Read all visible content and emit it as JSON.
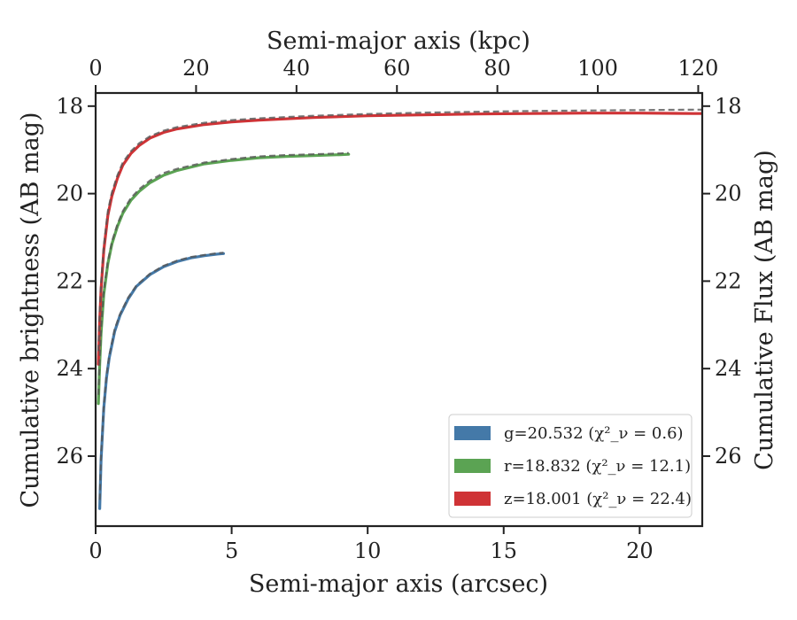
{
  "chart_data": {
    "type": "line",
    "xlabel": "Semi-major axis (arcsec)",
    "xlabel_top": "Semi-major axis (kpc)",
    "ylabel": "Cumulative brightness (AB mag)",
    "ylabel_right": "Cumulative Flux (AB mag)",
    "xlim": [
      0,
      22.3
    ],
    "ylim": [
      27.6,
      17.7
    ],
    "y_inverted": true,
    "xlim_top": [
      0,
      120.8
    ],
    "x_ticks": [
      0,
      5,
      10,
      15,
      20
    ],
    "x_ticks_top": [
      0,
      20,
      40,
      60,
      80,
      100,
      120
    ],
    "y_ticks": [
      18,
      20,
      22,
      24,
      26
    ],
    "grid": false,
    "legend_position": "lower-right",
    "series": [
      {
        "name": "g=20.532",
        "chi_label": "(χ²_ν = 0.6)",
        "color": "#4479a8",
        "x": [
          0.15,
          0.2,
          0.3,
          0.4,
          0.5,
          0.7,
          0.9,
          1.2,
          1.5,
          2.0,
          2.5,
          3.0,
          3.5,
          4.0,
          4.5,
          4.7
        ],
        "y": [
          27.2,
          26.1,
          24.9,
          24.2,
          23.75,
          23.15,
          22.78,
          22.4,
          22.12,
          21.85,
          21.67,
          21.55,
          21.47,
          21.42,
          21.38,
          21.37
        ]
      },
      {
        "name": "r=18.832",
        "chi_label": "(χ²_ν = 12.1)",
        "color": "#5ba353",
        "x": [
          0.1,
          0.15,
          0.2,
          0.3,
          0.45,
          0.6,
          0.8,
          1.0,
          1.3,
          1.6,
          2.0,
          2.5,
          3.0,
          4.0,
          5.0,
          6.0,
          7.0,
          8.0,
          9.0,
          9.3
        ],
        "y": [
          24.8,
          23.9,
          23.2,
          22.3,
          21.6,
          21.15,
          20.75,
          20.45,
          20.15,
          19.95,
          19.75,
          19.58,
          19.47,
          19.32,
          19.24,
          19.18,
          19.15,
          19.13,
          19.11,
          19.1
        ]
      },
      {
        "name": "z=18.001",
        "chi_label": "(χ²_ν = 22.4)",
        "color": "#cf3336",
        "x": [
          0.1,
          0.15,
          0.2,
          0.3,
          0.45,
          0.6,
          0.8,
          1.0,
          1.3,
          1.6,
          2.0,
          2.5,
          3.0,
          4.0,
          5.0,
          6.0,
          8.0,
          10.0,
          12.0,
          14.0,
          16.0,
          18.0,
          20.0,
          22.0,
          22.3
        ],
        "y": [
          23.9,
          22.9,
          22.2,
          21.3,
          20.5,
          20.05,
          19.65,
          19.35,
          19.08,
          18.9,
          18.73,
          18.6,
          18.52,
          18.42,
          18.36,
          18.32,
          18.26,
          18.22,
          18.2,
          18.18,
          18.17,
          18.16,
          18.16,
          18.17,
          18.17
        ]
      }
    ],
    "models": [
      {
        "color": "#555555",
        "dash": true,
        "x": [
          0.15,
          0.2,
          0.3,
          0.4,
          0.5,
          0.7,
          0.9,
          1.2,
          1.5,
          2.0,
          2.5,
          3.0,
          3.5,
          4.0,
          4.5,
          4.7
        ],
        "y": [
          27.0,
          26.0,
          24.85,
          24.15,
          23.7,
          23.1,
          22.75,
          22.37,
          22.1,
          21.83,
          21.65,
          21.53,
          21.45,
          21.4,
          21.36,
          21.35
        ]
      },
      {
        "color": "#555555",
        "dash": true,
        "x": [
          0.1,
          0.15,
          0.2,
          0.3,
          0.45,
          0.6,
          0.8,
          1.0,
          1.3,
          1.6,
          2.0,
          2.5,
          3.0,
          4.0,
          5.0,
          6.0,
          7.0,
          8.0,
          9.0,
          9.3
        ],
        "y": [
          24.6,
          23.75,
          23.1,
          22.2,
          21.55,
          21.1,
          20.7,
          20.4,
          20.1,
          19.9,
          19.7,
          19.53,
          19.43,
          19.29,
          19.21,
          19.15,
          19.12,
          19.1,
          19.08,
          19.07
        ]
      },
      {
        "color": "#555555",
        "dash": true,
        "x": [
          0.1,
          0.15,
          0.2,
          0.3,
          0.45,
          0.6,
          0.8,
          1.0,
          1.3,
          1.6,
          2.0,
          2.5,
          3.0,
          4.0,
          5.0,
          6.0,
          8.0,
          10.0,
          12.0,
          14.0,
          16.0,
          18.0,
          20.0,
          22.0,
          22.3
        ],
        "y": [
          23.6,
          22.7,
          22.05,
          21.2,
          20.4,
          19.97,
          19.58,
          19.29,
          19.03,
          18.85,
          18.69,
          18.56,
          18.48,
          18.38,
          18.32,
          18.28,
          18.22,
          18.18,
          18.15,
          18.13,
          18.11,
          18.1,
          18.09,
          18.08,
          18.08
        ]
      }
    ]
  }
}
